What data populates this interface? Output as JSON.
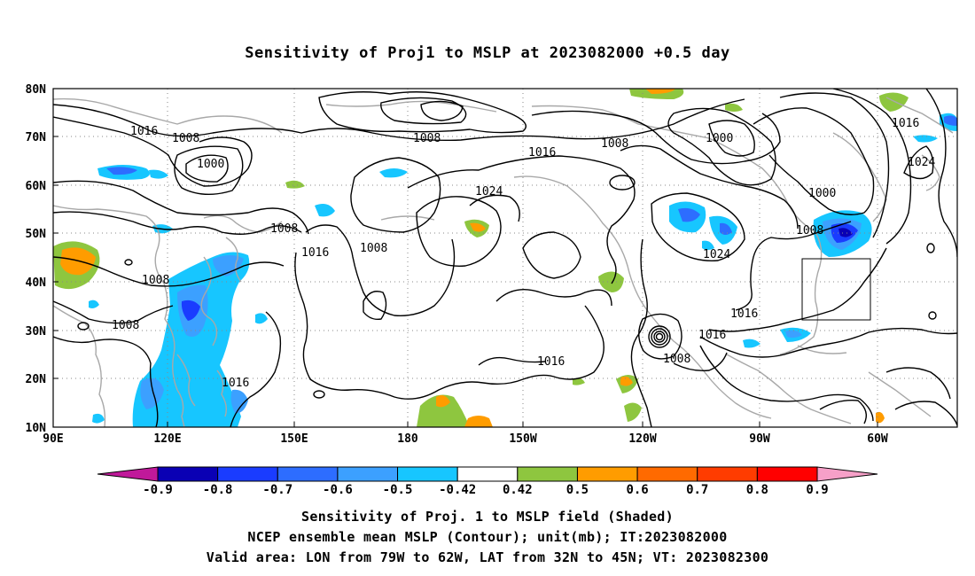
{
  "title": "Sensitivity of Proj1 to MSLP at 2023082000 +0.5 day",
  "axes": {
    "x_ticks": [
      "90E",
      "120E",
      "150E",
      "180",
      "150W",
      "120W",
      "90W",
      "60W"
    ],
    "y_ticks": [
      "80N",
      "70N",
      "60N",
      "50N",
      "40N",
      "30N",
      "20N",
      "10N"
    ],
    "lon_range": [
      "90E",
      "45W"
    ],
    "lat_range": [
      "10N",
      "80N"
    ],
    "grid": true
  },
  "contours": {
    "color": "#000000",
    "coast_color": "#a8a8a8",
    "labels": [
      "1016",
      "1008",
      "1000",
      "1008",
      "1016",
      "1008",
      "1000",
      "1016",
      "1024",
      "1000",
      "1024",
      "1008",
      "1016",
      "1024",
      "1008",
      "1008",
      "1008",
      "1008",
      "1016",
      "1016",
      "1016",
      "1008"
    ]
  },
  "validation_box": {
    "lon_range": [
      "79W",
      "62W"
    ],
    "lat_range": [
      "32N",
      "45N"
    ]
  },
  "colorbar": {
    "labels": [
      "-0.9",
      "-0.8",
      "-0.7",
      "-0.6",
      "-0.5",
      "-0.42",
      "0.42",
      "0.5",
      "0.6",
      "0.7",
      "0.8",
      "0.9"
    ],
    "colors": [
      "#0a00b4",
      "#1a3cff",
      "#2d6dff",
      "#3ca0ff",
      "#17c6ff",
      "#ffffff",
      "#8ec63f",
      "#ff9c00",
      "#ff6a00",
      "#ff3c00",
      "#ff0000"
    ],
    "low_end_color": "#c0199a",
    "high_end_color": "#f6a0c8"
  },
  "captions": [
    "Sensitivity of Proj. 1 to MSLP field (Shaded)",
    "NCEP ensemble mean MSLP (Contour); unit(mb); IT:2023082000",
    "Valid area: LON from 79W to 62W, LAT from 32N to 45N; VT: 2023082300"
  ]
}
